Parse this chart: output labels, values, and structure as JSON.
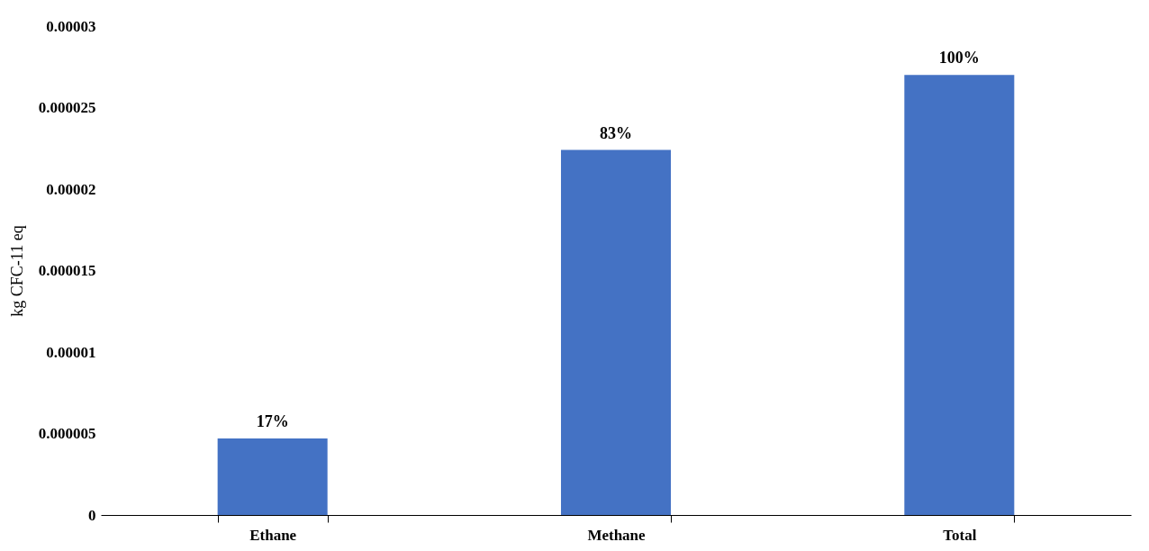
{
  "chart_data": {
    "type": "bar",
    "ylabel": "kg CFC-11 eq",
    "categories": [
      "Ethane",
      "Methane",
      "Total"
    ],
    "values": [
      4.7e-06,
      2.24e-05,
      2.7e-05
    ],
    "annotations": [
      {
        "text": "17%",
        "x": "Ethane",
        "y": 4.7e-06
      },
      {
        "text": "83%",
        "x": "Methane",
        "y": 2.24e-05
      },
      {
        "text": "100%",
        "x": "Total",
        "y": 2.7e-05
      }
    ],
    "color": "#4472c4",
    "ylim": [
      0,
      3e-05
    ],
    "yticks": [
      {
        "value": 0,
        "label": "0"
      },
      {
        "value": 5e-06,
        "label": "0.000005"
      },
      {
        "value": 1e-05,
        "label": "0.00001"
      },
      {
        "value": 1.5e-05,
        "label": "0.000015"
      },
      {
        "value": 2e-05,
        "label": "0.00002"
      },
      {
        "value": 2.5e-05,
        "label": "0.000025"
      },
      {
        "value": 3e-05,
        "label": "0.00003"
      }
    ],
    "grid": false
  }
}
